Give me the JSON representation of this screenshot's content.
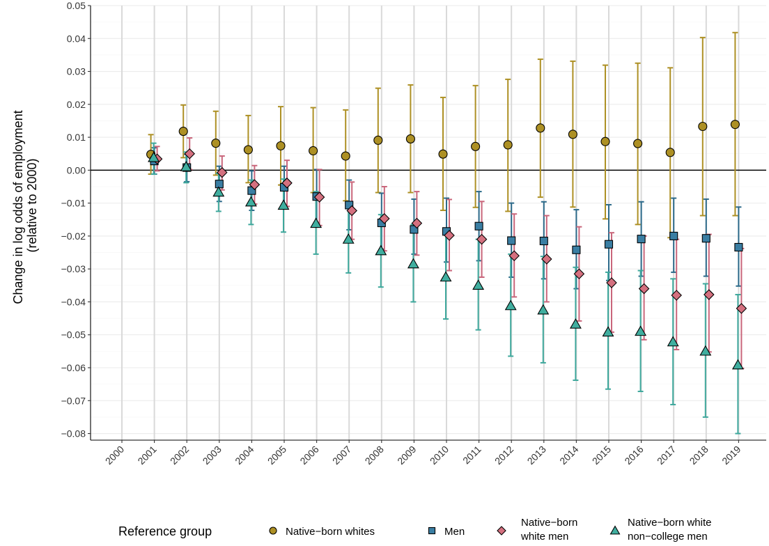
{
  "chart_data": {
    "type": "scatter",
    "title": "",
    "xlabel": "",
    "ylabel": "Change in log odds of employment",
    "ylabel_sub": "(relative to 2000)",
    "ylim": [
      -0.082,
      0.05
    ],
    "yticks": [
      0.05,
      0.04,
      0.03,
      0.02,
      0.01,
      0.0,
      -0.01,
      -0.02,
      -0.03,
      -0.04,
      -0.05,
      -0.06,
      -0.07,
      -0.08
    ],
    "ytick_labels": [
      "0.05",
      "0.04",
      "0.03",
      "0.02",
      "0.01",
      "0.00",
      "−0.01",
      "−0.02",
      "−0.03",
      "−0.04",
      "−0.05",
      "−0.06",
      "−0.07",
      "−0.08"
    ],
    "categories": [
      "2000",
      "2001",
      "2002",
      "2003",
      "2004",
      "2005",
      "2006",
      "2007",
      "2008",
      "2009",
      "2010",
      "2011",
      "2012",
      "2013",
      "2014",
      "2015",
      "2016",
      "2017",
      "2018",
      "2019"
    ],
    "grid": true,
    "legend_position": "bottom",
    "legend_title": "Reference group",
    "series": [
      {
        "name": "Native−born whites",
        "label_lines": [
          "Native−born whites"
        ],
        "marker": "circle",
        "color": "#AD9024",
        "fill": "#AD9024",
        "values": [
          null,
          0.0048,
          0.0118,
          0.0082,
          0.0062,
          0.0074,
          0.0059,
          0.0043,
          0.0091,
          0.0095,
          0.0049,
          0.0072,
          0.0077,
          0.0128,
          0.0109,
          0.0087,
          0.0081,
          0.0054,
          0.0133,
          0.0139
        ],
        "lower": [
          null,
          -0.0012,
          0.0038,
          -0.0015,
          -0.0038,
          -0.0045,
          -0.0068,
          -0.0093,
          -0.0068,
          -0.0068,
          -0.0122,
          -0.0113,
          -0.0125,
          -0.0082,
          -0.0112,
          -0.0148,
          -0.0165,
          -0.0205,
          -0.0138,
          -0.0138
        ],
        "upper": [
          null,
          0.0108,
          0.0198,
          0.0179,
          0.0166,
          0.0193,
          0.019,
          0.0183,
          0.0249,
          0.0259,
          0.0221,
          0.0257,
          0.0276,
          0.0337,
          0.0331,
          0.0319,
          0.0325,
          0.0311,
          0.0403,
          0.0418
        ]
      },
      {
        "name": "Men",
        "label_lines": [
          "Men"
        ],
        "marker": "square",
        "color": "#2C6A8A",
        "fill": "#3A7EA3",
        "values": [
          null,
          0.0028,
          0.0008,
          -0.0042,
          -0.0062,
          -0.0052,
          -0.008,
          -0.0106,
          -0.016,
          -0.018,
          -0.0186,
          -0.017,
          -0.0214,
          -0.0215,
          -0.0242,
          -0.0225,
          -0.0209,
          -0.02,
          -0.0207,
          -0.0234
        ],
        "lower": [
          null,
          -0.0012,
          -0.0035,
          -0.0095,
          -0.0122,
          -0.0112,
          -0.016,
          -0.0181,
          -0.024,
          -0.0255,
          -0.0279,
          -0.0275,
          -0.0325,
          -0.033,
          -0.036,
          -0.0335,
          -0.0322,
          -0.031,
          -0.0322,
          -0.0352
        ],
        "upper": [
          null,
          0.0068,
          0.0048,
          0.0012,
          -0.0002,
          0.0012,
          0.0002,
          -0.003,
          -0.007,
          -0.0088,
          -0.0085,
          -0.0065,
          -0.01,
          -0.0096,
          -0.012,
          -0.0105,
          -0.0096,
          -0.0085,
          -0.0088,
          -0.0112
        ]
      },
      {
        "name": "Native−born white men",
        "label_lines": [
          "Native−born",
          "white men"
        ],
        "marker": "diamond",
        "color": "#C9667B",
        "fill": "#D4707F",
        "values": [
          null,
          0.0034,
          0.005,
          -0.0007,
          -0.0044,
          -0.0039,
          -0.0082,
          -0.0123,
          -0.0147,
          -0.0161,
          -0.0198,
          -0.021,
          -0.026,
          -0.027,
          -0.0315,
          -0.0342,
          -0.036,
          -0.038,
          -0.0378,
          -0.042
        ],
        "lower": [
          null,
          -0.0002,
          0.0002,
          -0.006,
          -0.0103,
          -0.011,
          -0.0168,
          -0.021,
          -0.0245,
          -0.0258,
          -0.0305,
          -0.0325,
          -0.0385,
          -0.04,
          -0.0458,
          -0.0492,
          -0.0515,
          -0.0545,
          -0.0552,
          -0.0602
        ],
        "upper": [
          null,
          0.0072,
          0.0098,
          0.0043,
          0.0014,
          0.003,
          0.0002,
          -0.0036,
          -0.005,
          -0.0065,
          -0.0089,
          -0.0095,
          -0.0133,
          -0.0138,
          -0.0172,
          -0.019,
          -0.02,
          -0.021,
          -0.0195,
          -0.0238
        ]
      },
      {
        "name": "Native−born white non−college men",
        "label_lines": [
          "Native−born white",
          "non−college men"
        ],
        "marker": "triangle",
        "color": "#3EA89C",
        "fill": "#40AE9F",
        "values": [
          null,
          0.0038,
          0.001,
          -0.0067,
          -0.0097,
          -0.0107,
          -0.0162,
          -0.021,
          -0.0245,
          -0.0285,
          -0.0325,
          -0.035,
          -0.0412,
          -0.0425,
          -0.0468,
          -0.0492,
          -0.049,
          -0.0522,
          -0.055,
          -0.0592
        ],
        "lower": [
          null,
          -0.0012,
          -0.0038,
          -0.0125,
          -0.0165,
          -0.0188,
          -0.0255,
          -0.0312,
          -0.0355,
          -0.04,
          -0.0452,
          -0.0485,
          -0.0565,
          -0.0585,
          -0.0638,
          -0.0665,
          -0.0672,
          -0.0712,
          -0.075,
          -0.08
        ],
        "upper": [
          null,
          0.0082,
          0.0055,
          -0.001,
          -0.003,
          -0.0027,
          -0.0065,
          -0.011,
          -0.0135,
          -0.0165,
          -0.0195,
          -0.021,
          -0.0255,
          -0.0262,
          -0.0295,
          -0.031,
          -0.0305,
          -0.033,
          -0.0345,
          -0.0378
        ]
      }
    ]
  }
}
